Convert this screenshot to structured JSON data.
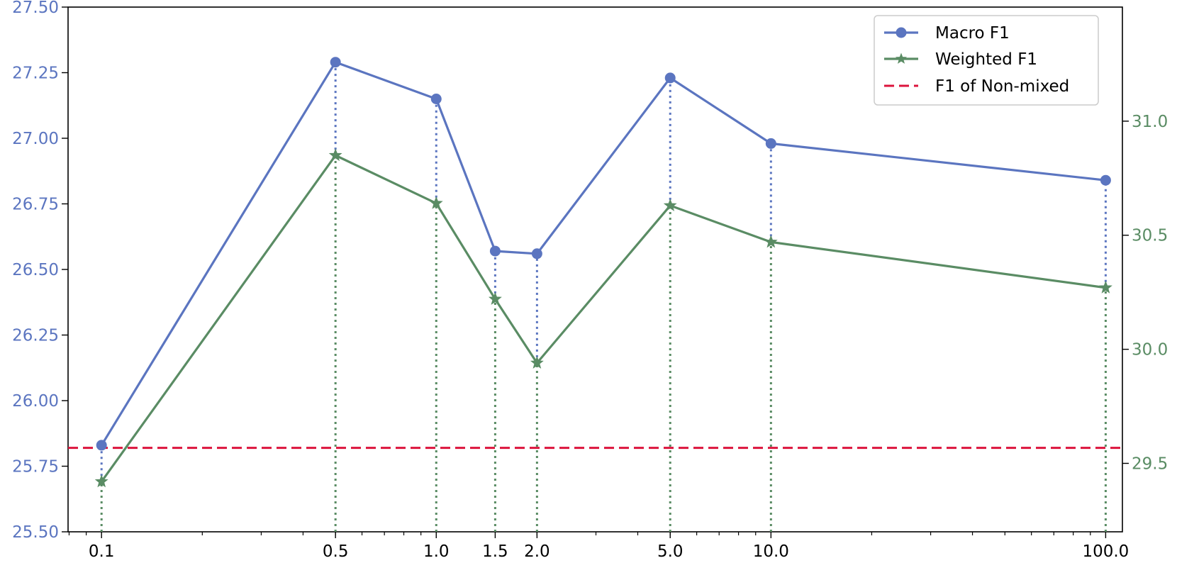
{
  "chart_data": {
    "type": "line",
    "x": [
      0.1,
      0.5,
      1.0,
      1.5,
      2.0,
      5.0,
      10.0,
      100.0
    ],
    "x_tick_labels": [
      "0.1",
      "0.5",
      "1.0",
      "1.5",
      "2.0",
      "5.0",
      "10.0",
      "100.0"
    ],
    "x_scale": "log",
    "series": [
      {
        "name": "Macro F1",
        "axis": "left",
        "color": "#5b75c0",
        "marker": "circle",
        "values": [
          25.83,
          27.29,
          27.15,
          26.57,
          26.56,
          27.23,
          26.98,
          26.84
        ]
      },
      {
        "name": "Weighted F1",
        "axis": "right",
        "color": "#5a8c64",
        "marker": "star",
        "values": [
          29.42,
          30.85,
          30.64,
          30.22,
          29.94,
          30.63,
          30.47,
          30.27
        ]
      }
    ],
    "reference_line": {
      "name": "F1 of Non-mixed",
      "axis": "left",
      "value": 25.82,
      "color": "#dc143c",
      "style": "dashed"
    },
    "y_left": {
      "ylim": [
        25.5,
        27.5
      ],
      "ticks": [
        "25.50",
        "25.75",
        "26.00",
        "26.25",
        "26.50",
        "26.75",
        "27.00",
        "27.25",
        "27.50"
      ],
      "color": "#5b75c0"
    },
    "y_right": {
      "ylim": [
        29.2,
        31.5
      ],
      "ticks": [
        "29.5",
        "30.0",
        "30.5",
        "31.0"
      ],
      "color": "#5a8c64"
    },
    "legend": {
      "placement": "top-right",
      "entries": [
        "Macro F1",
        "Weighted F1",
        "F1 of Non-mixed"
      ]
    },
    "grid": false,
    "title": "",
    "xlabel": "",
    "ylabel": ""
  }
}
